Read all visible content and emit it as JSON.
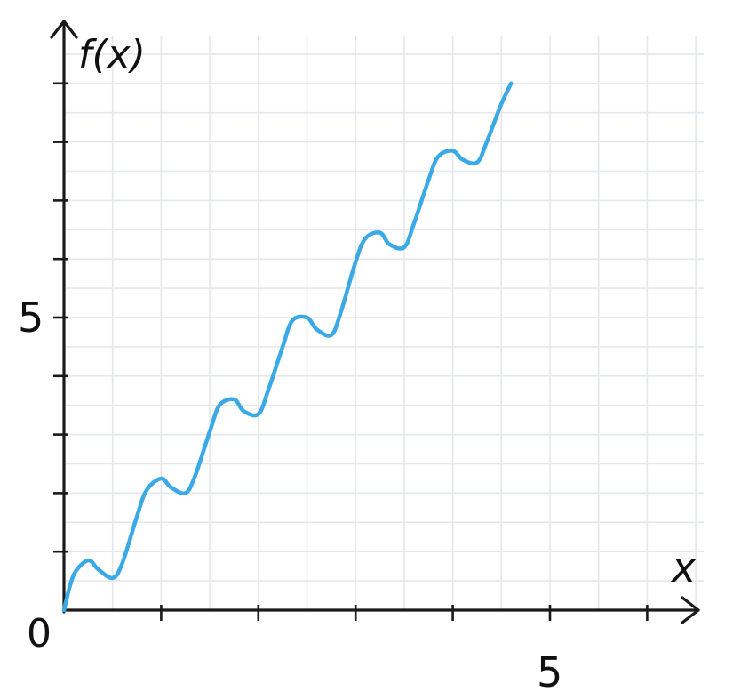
{
  "chart_data": {
    "type": "line",
    "xlabel": "x",
    "ylabel": "f(x)",
    "origin_label": "0",
    "xlim": [
      0,
      6.5
    ],
    "ylim": [
      0,
      9
    ],
    "x_tick_labels": [
      {
        "value": 5,
        "label": "5"
      }
    ],
    "y_tick_labels": [
      {
        "value": 5,
        "label": "5"
      }
    ],
    "grid": true,
    "series": [
      {
        "color": "#3aa9e6",
        "x": [
          0,
          0.1,
          0.25,
          0.35,
          0.5,
          0.6,
          0.75,
          0.85,
          1.0,
          1.1,
          1.25,
          1.35,
          1.5,
          1.6,
          1.75,
          1.85,
          2.0,
          2.1,
          2.25,
          2.35,
          2.5,
          2.6,
          2.75,
          2.85,
          3.0,
          3.1,
          3.25,
          3.35,
          3.5,
          3.6,
          3.75,
          3.85,
          4.0,
          4.1,
          4.25,
          4.35,
          4.5,
          4.6
        ],
        "y": [
          0,
          0.6,
          0.85,
          0.7,
          0.55,
          0.8,
          1.6,
          2.05,
          2.25,
          2.1,
          2.0,
          2.3,
          3.05,
          3.5,
          3.6,
          3.4,
          3.35,
          3.75,
          4.5,
          4.95,
          5.0,
          4.8,
          4.7,
          5.1,
          5.95,
          6.35,
          6.45,
          6.25,
          6.2,
          6.6,
          7.35,
          7.75,
          7.85,
          7.7,
          7.65,
          8.0,
          8.65,
          9.0
        ]
      }
    ]
  }
}
